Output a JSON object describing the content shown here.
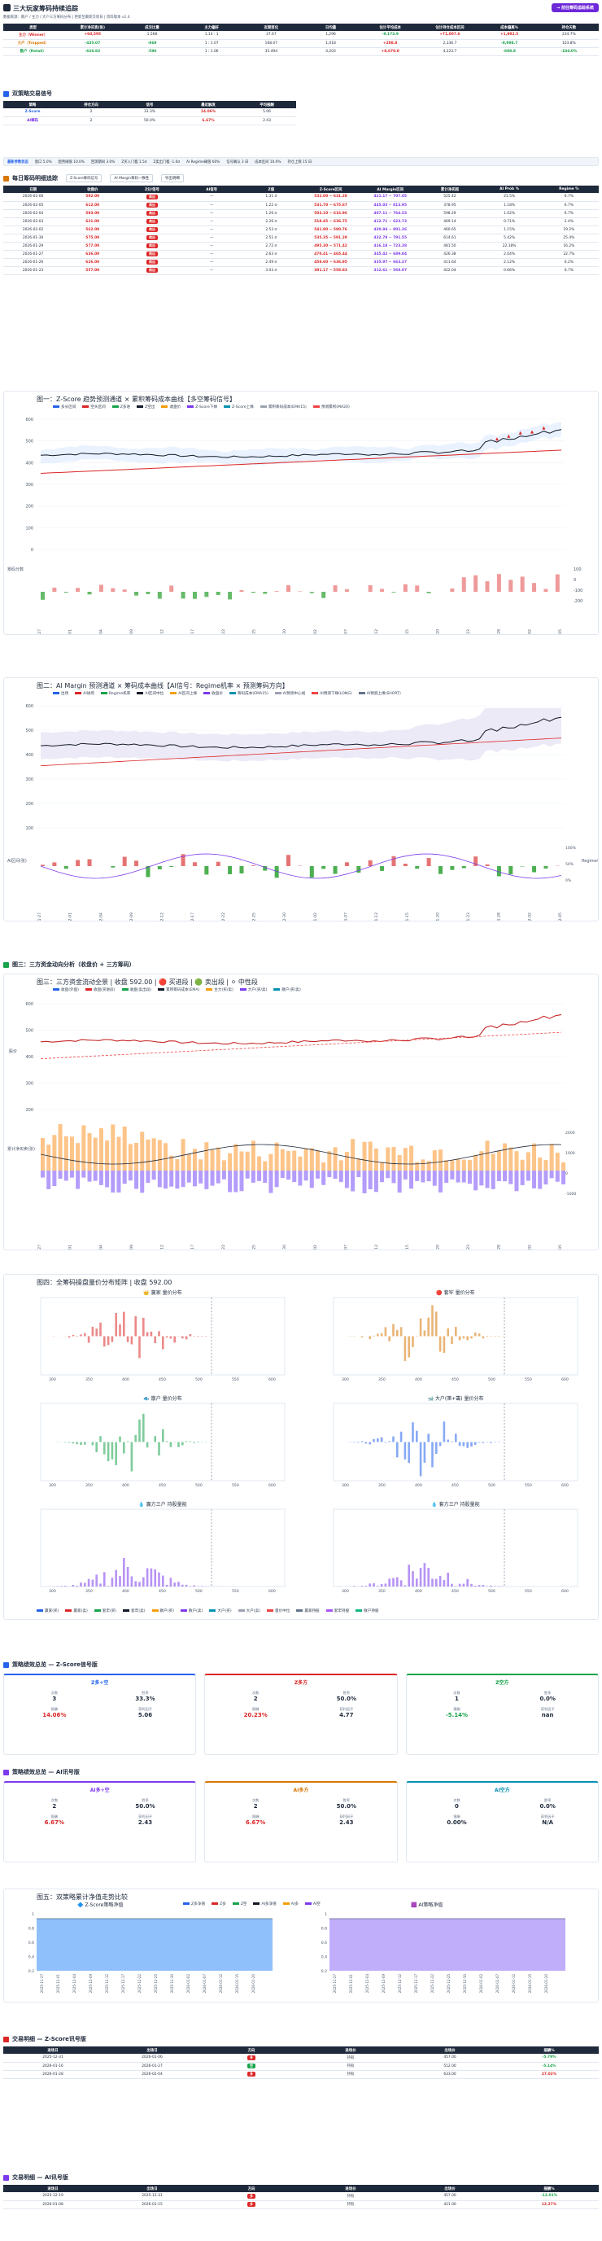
{
  "header": {
    "title": "三大玩家筹码持续追踪",
    "subtitle": "数据来源：散户 / 主力 / 大户三方筹码分布 | 更新至最新交易日 | 资料版本 v2.4",
    "action_button": "→ 前往筹码追踪系统"
  },
  "summary_table": {
    "headers": [
      "类型",
      "累计净买卖(张)",
      "成交比重",
      "主力偏好",
      "近期变化",
      "日均量",
      "估计平均成本",
      "估计持仓成本区间",
      "成本偏离%",
      "持仓天数"
    ],
    "rows": [
      {
        "name": "主力（Winner）",
        "cls": "red",
        "cells": [
          "+60,595",
          "1,568",
          "1.14 : 1",
          "37.67",
          "1,296",
          "-9,173.9",
          "+71,007.6",
          "+1,982.5",
          "234.7%"
        ]
      },
      {
        "name": "大户（Trapped）",
        "cls": "orange",
        "cells": [
          "-435.07",
          "-869",
          "1 : 1.07",
          "168.07",
          "1,018",
          "+208.8",
          "2,336.7",
          "-8,998.7",
          "103.8%"
        ]
      },
      {
        "name": "散户（Retail）",
        "cls": "green",
        "cells": [
          "-626.82",
          "-596",
          "1 : 1.06",
          "35.494",
          "4,203",
          "+8,670.0",
          "4,223.7",
          "-698.8",
          "-104.0%"
        ]
      }
    ]
  },
  "signal_section": {
    "title": "双策略交易信号",
    "headers": [
      "策略",
      "持仓方向",
      "信号",
      "最近触发",
      "平均报酬"
    ],
    "rows": [
      {
        "strategy": "Z-Score",
        "direction": "2",
        "signal": "33.3%",
        "recent": "14.06%",
        "avg": "5.06"
      },
      {
        "strategy": "AI筹码",
        "direction": "2",
        "signal": "50.0%",
        "recent": "6.67%",
        "avg": "2.43"
      }
    ]
  },
  "param_bar": {
    "label": "最新参数状态",
    "items": [
      "窗口 5.0%",
      "趋势阈值 10.0%",
      "回测期间 3.0%",
      "Z买入门槛 1.5σ",
      "Z卖出门槛 -1.0σ",
      "AI Regime阈值 60%",
      "信号确认 3 日",
      "成本区间 10.0%",
      "持仓上限 15 日"
    ]
  },
  "detail_section": {
    "title": "每日筹码明细追踪",
    "tab1": "Z-Score筹码信号",
    "tab2": "AI Margin筹码一致性",
    "export": "导出明细",
    "headers": [
      "日期",
      "收盘价",
      "Z分/信号",
      "AI信号",
      "Z值",
      "Z-Score区间",
      "AI Margin区间",
      "累计净买超",
      "AI Prob %",
      "Regime %"
    ],
    "rows": [
      {
        "date": "2026-02-06",
        "close": "592.00",
        "sig": "卖出",
        "ai": "—",
        "z": "1.31 σ",
        "zr": "532.00 ~ 631.20",
        "ar": "421.17 ~ 707.05",
        "cum": "525.42",
        "prob": "21.5%",
        "reg": "6.7%"
      },
      {
        "date": "2026-02-05",
        "close": "612.00",
        "sig": "卖出",
        "ai": "—",
        "z": "1.22 σ",
        "zr": "531.70 ~ 675.67",
        "ar": "445.03 ~ 813.95",
        "cum": "378.95",
        "prob": "1.18%",
        "reg": "6.7%"
      },
      {
        "date": "2026-02-04",
        "close": "593.00",
        "sig": "卖出",
        "ai": "—",
        "z": "1.26 σ",
        "zr": "503.10 ~ 616.96",
        "ar": "407.11 ~ 764.53",
        "cum": "598.29",
        "prob": "1.02%",
        "reg": "6.7%"
      },
      {
        "date": "2026-02-03",
        "close": "621.00",
        "sig": "卖出",
        "ai": "—",
        "z": "2.26 σ",
        "zr": "518.45 ~ 636.75",
        "ar": "412.71 ~ 623.73",
        "cum": "469.14",
        "prob": "0.71%",
        "reg": "2.4%"
      },
      {
        "date": "2026-02-02",
        "close": "562.00",
        "sig": "卖出",
        "ai": "—",
        "z": "2.53 σ",
        "zr": "541.80 ~ 590.76",
        "ar": "420.84 ~ 801.26",
        "cum": "460.65",
        "prob": "1.15%",
        "reg": "19.2%"
      },
      {
        "date": "2026-01-30",
        "close": "575.00",
        "sig": "卖出",
        "ai": "—",
        "z": "2.51 σ",
        "zr": "535.35 ~ 591.29",
        "ar": "432.78 ~ 791.55",
        "cum": "614.61",
        "prob": "5.42%",
        "reg": "25.4%"
      },
      {
        "date": "2026-01-29",
        "close": "577.00",
        "sig": "卖出",
        "ai": "—",
        "z": "2.72 σ",
        "zr": "495.30 ~ 571.42",
        "ar": "416.18 ~ 723.28",
        "cum": "481.50",
        "prob": "22.18%",
        "reg": "16.2%"
      },
      {
        "date": "2026-01-27",
        "close": "636.00",
        "sig": "卖出",
        "ai": "—",
        "z": "2.63 σ",
        "zr": "470.41 ~ 465.44",
        "ar": "345.42 ~ 689.04",
        "cum": "426.38",
        "prob": "2.04%",
        "reg": "22.7%"
      },
      {
        "date": "2026-01-26",
        "close": "626.00",
        "sig": "卖出",
        "ai": "—",
        "z": "2.49 σ",
        "zr": "458.60 ~ 636.95",
        "ar": "335.97 ~ 663.27",
        "cum": "411.64",
        "prob": "2.12%",
        "reg": "6.2%"
      },
      {
        "date": "2026-01-23",
        "close": "557.00",
        "sig": "卖出",
        "ai": "—",
        "z": "3.03 σ",
        "zr": "391.17 ~ 558.83",
        "ar": "312.61 ~ 569.07",
        "cum": "422.04",
        "prob": "0.66%",
        "reg": "6.7%"
      }
    ]
  },
  "chart1": {
    "title": "图一：Z-Score 趋势预测通道 × 累积筹码成本曲线【多空筹码信号】",
    "legend": [
      "多头区间",
      "空头区间",
      "Z多进",
      "Z空出",
      "收盘价",
      "Z-Score下缘",
      "Z-Score上缘",
      "累积筹码成本(EMA15)",
      "预测累积(MA20)"
    ],
    "sub_label": "筹码分数",
    "y_ticks": [
      "0",
      "100",
      "200",
      "300",
      "400",
      "500",
      "600"
    ],
    "sub_ticks": [
      "100",
      "0",
      "-100",
      "-200"
    ],
    "x_ticks": [
      "2025-11-27",
      "2025-12-01",
      "2025-12-04",
      "2025-12-09",
      "2025-12-12",
      "2025-12-17",
      "2025-12-22",
      "2025-12-25",
      "2025-12-30",
      "2026-01-02",
      "2026-01-07",
      "2026-01-12",
      "2026-01-15",
      "2026-01-20",
      "2026-01-23",
      "2026-01-28",
      "2026-02-02",
      "2026-02-05"
    ]
  },
  "chart2": {
    "title": "图二：AI Margin 预测通道 × 筹码成本曲线【AI信号：Regime机率 × 预测筹码方向】",
    "legend": [
      "出场",
      "AI进场",
      "Regime机率",
      "AI区间中位",
      "AI区间上缘",
      "收盘价",
      "筹码成本(EMA15)",
      "AI预测中心线",
      "AI预测下缘(LONG)",
      "AI预测上缘(SHORT)"
    ],
    "y_ticks": [
      "100",
      "200",
      "300",
      "400",
      "500",
      "600"
    ],
    "sub_left": "AI区间(张)",
    "sub_right": "Regime机率",
    "sub_ticks": [
      "50",
      "0",
      "-50"
    ],
    "sub_right_ticks": [
      "100%",
      "50%",
      "0%"
    ]
  },
  "chart3": {
    "section": "图三：三方资金动向分析（收盘价 + 三方筹码）",
    "title": "图三：三方资金流动全景 | 收盘 592.00 | 🔴 买进段 | 🟢 卖出段 | ⚪ 中性段",
    "legend": [
      "收盘(外盘)",
      "收盘(买进段)",
      "收盘(卖出段)",
      "累积筹码成本(EMA)",
      "主力(买/卖)",
      "大户(买/卖)",
      "散户(买/卖)"
    ],
    "y_label": "股价",
    "y_ticks": [
      "200",
      "300",
      "400",
      "500",
      "600"
    ],
    "sub_label": "累计净买卖(张)",
    "sub_ticks": [
      "2000",
      "1000",
      "0",
      "-1000"
    ]
  },
  "chart4": {
    "title": "图四：全筹码操盘量价分布矩阵 | 收盘 592.00",
    "panels": [
      {
        "title": "👑 赢家 量价分布",
        "color": "#dc2626"
      },
      {
        "title": "🔴 套牢 量价分布",
        "color": "#d97706"
      },
      {
        "title": "🐟 散户 量价分布",
        "color": "#16a34a"
      },
      {
        "title": "🐋 大户(第+籌) 量价分布",
        "color": "#2563eb"
      },
      {
        "title": "💧 赢方三户 持股量能",
        "color": "#7c3aed"
      },
      {
        "title": "💧 套方三户 持股量能",
        "color": "#7c3aed"
      }
    ],
    "x_ticks": [
      "300",
      "350",
      "400",
      "450",
      "500",
      "550",
      "600"
    ],
    "legend": [
      "赢家(买)",
      "赢家(卖)",
      "套牢(买)",
      "套牢(卖)",
      "散户(买)",
      "散户(卖)",
      "大户(买)",
      "大户(卖)",
      "量价中位",
      "赢家持股",
      "套牢持股",
      "散户持股"
    ]
  },
  "z_perf": {
    "title": "策略绩效总览 — Z-Score信号版",
    "cards": [
      {
        "head": "Z多+空",
        "color": "#2563eb",
        "trades": "3",
        "win": "33.3%",
        "ret": "14.06%",
        "ratio": "5.06",
        "ret_cls": "red"
      },
      {
        "head": "Z多方",
        "color": "#dc2626",
        "trades": "2",
        "win": "50.0%",
        "ret": "20.23%",
        "ratio": "4.77",
        "ret_cls": "red"
      },
      {
        "head": "Z空方",
        "color": "#16a34a",
        "trades": "1",
        "win": "0.0%",
        "ret": "-5.14%",
        "ratio": "nan",
        "ret_cls": "green"
      }
    ],
    "labels": {
      "trades": "次数",
      "win": "胜率",
      "ret": "报酬",
      "ratio": "获利因子"
    }
  },
  "ai_perf": {
    "title": "策略绩效总览 — AI讯号版",
    "cards": [
      {
        "head": "AI多+空",
        "color": "#7c3aed",
        "trades": "2",
        "win": "50.0%",
        "ret": "6.67%",
        "ratio": "2.43",
        "ret_cls": "red"
      },
      {
        "head": "AI多方",
        "color": "#d97706",
        "trades": "2",
        "win": "50.0%",
        "ret": "6.67%",
        "ratio": "2.43",
        "ret_cls": "red"
      },
      {
        "head": "AI空方",
        "color": "#0891b2",
        "trades": "0",
        "win": "0.0%",
        "ret": "0.00%",
        "ratio": "N/A",
        "ret_cls": "plain"
      }
    ]
  },
  "chart5": {
    "title": "图五：双策略累计净值走势比较",
    "left_title": "🔷 Z-Score策略净值",
    "right_title": "🟪 AI策略净值",
    "left_legend": [
      "Z多净值",
      "Z多",
      "Z空",
      "AI多净值",
      "AI多",
      "AI空"
    ],
    "left_ticks": [
      "1",
      "0.8",
      "0.6",
      "0.4",
      "0.2"
    ],
    "right_ticks": [
      "1",
      "0.8",
      "0.6",
      "0.4",
      "0.2"
    ]
  },
  "z_trades": {
    "title": "交易明细 — Z-Score讯号版",
    "headers": [
      "进场日",
      "出场日",
      "方向",
      "进场价",
      "出场价",
      "报酬%"
    ],
    "rows": [
      {
        "in": "2025-12-31",
        "out": "2026-01-06",
        "dir": "多",
        "dir_color": "#dc2626",
        "pin": "持有",
        "pout": "457.00",
        "ret": "-5.79%",
        "ret_cls": "green"
      },
      {
        "in": "2026-01-16",
        "out": "2026-01-27",
        "dir": "空",
        "dir_color": "#16a34a",
        "pin": "持有",
        "pout": "512.00",
        "ret": "-5.14%",
        "ret_cls": "green"
      },
      {
        "in": "2026-01-28",
        "out": "2026-02-04",
        "dir": "多",
        "dir_color": "#dc2626",
        "pin": "持有",
        "pout": "633.00",
        "ret": "27.02%",
        "ret_cls": "red"
      }
    ]
  },
  "ai_trades": {
    "title": "交易明细 — AI讯号版",
    "headers": [
      "进场日",
      "出场日",
      "方向",
      "进场价",
      "出场价",
      "报酬%"
    ],
    "rows": [
      {
        "in": "2025-12-19",
        "out": "2025-12-31",
        "dir": "多",
        "dir_color": "#dc2626",
        "pin": "持有",
        "pout": "457.00",
        "ret": "-12.01%",
        "ret_cls": "green"
      },
      {
        "in": "2026-01-08",
        "out": "2026-01-15",
        "dir": "多",
        "dir_color": "#dc2626",
        "pin": "持有",
        "pout": "421.00",
        "ret": "12.27%",
        "ret_cls": "red"
      }
    ]
  }
}
